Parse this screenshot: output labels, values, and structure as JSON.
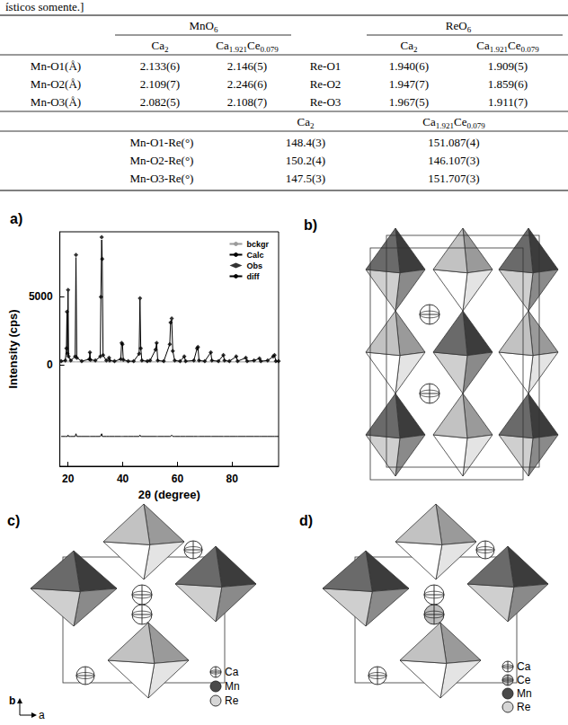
{
  "caption_fragment": "ísticos somente.]",
  "table": {
    "header": [
      "MnO6",
      "ReO6"
    ],
    "subheader": [
      "Ca2",
      "Ca1.921Ce0.079",
      "Ca2",
      "Ca1.921Ce0.079"
    ],
    "rows": [
      [
        "Mn-O1(Å)",
        "2.133(6)",
        "2.146(5)",
        "Re-O1",
        "1.940(6)",
        "1.909(5)"
      ],
      [
        "Mn-O2(Å)",
        "2.109(7)",
        "2.246(6)",
        "Re-O2",
        "1.947(7)",
        "1.859(6)"
      ],
      [
        "Mn-O3(Å)",
        "2.082(5)",
        "2.108(7)",
        "Re-O3",
        "1.967(5)",
        "1.911(7)"
      ]
    ],
    "angle_header": [
      "Ca2",
      "Ca1.921Ce0.079"
    ],
    "angle_rows": [
      [
        "Mn-O1-Re(°)",
        "148.4(3)",
        "151.087(4)"
      ],
      [
        "Mn-O2-Re(°)",
        "150.2(4)",
        "146.107(3)"
      ],
      [
        "Mn-O3-Re(°)",
        "147.5(3)",
        "151.707(3)"
      ]
    ]
  },
  "chart_data": {
    "type": "line",
    "title": "a)",
    "x_label": "2θ (degree)",
    "y_label": "Intensity (cps)",
    "xlim": [
      17,
      97
    ],
    "xticks": [
      20,
      40,
      60,
      80
    ],
    "ylim": [
      -7500,
      9800
    ],
    "yticks": [
      0,
      5000
    ],
    "grid": false,
    "legend": "upper right",
    "x": [
      17.5,
      19.0,
      19.4,
      19.6,
      19.8,
      20.0,
      20.2,
      21.0,
      22.6,
      22.9,
      23.2,
      25.0,
      27.8,
      28.0,
      28.2,
      30.0,
      31.8,
      32.0,
      32.3,
      32.5,
      32.8,
      34.0,
      35.0,
      35.2,
      37.0,
      39.3,
      39.6,
      39.9,
      40.2,
      42.0,
      44.0,
      46.0,
      46.3,
      46.6,
      47.0,
      49.0,
      50.0,
      52.0,
      52.4,
      52.8,
      55.0,
      57.2,
      57.5,
      57.9,
      58.3,
      59.0,
      61.0,
      62.5,
      63.0,
      66.0,
      67.2,
      67.5,
      67.9,
      70.0,
      72.2,
      72.6,
      75.0,
      76.8,
      77.2,
      79.0,
      81.5,
      82.0,
      85.0,
      85.5,
      88.0,
      90.0,
      90.5,
      93.0,
      95.0,
      95.5,
      96.0,
      97.0
    ],
    "series": [
      {
        "name": "bckgr",
        "type": "line",
        "color": "#9a9a9a",
        "line_style": "solid",
        "values": [
          200,
          200,
          200,
          200,
          200,
          200,
          200,
          200,
          200,
          200,
          200,
          200,
          200,
          200,
          200,
          200,
          200,
          200,
          200,
          200,
          200,
          200,
          200,
          200,
          200,
          200,
          200,
          200,
          200,
          200,
          200,
          200,
          200,
          200,
          200,
          200,
          200,
          200,
          200,
          200,
          200,
          200,
          200,
          200,
          200,
          200,
          200,
          200,
          200,
          200,
          200,
          200,
          200,
          200,
          200,
          200,
          200,
          200,
          200,
          200,
          200,
          200,
          200,
          200,
          200,
          200,
          200,
          200,
          200,
          200,
          200,
          200
        ]
      },
      {
        "name": "Calc",
        "type": "line",
        "color": "#000000",
        "line_style": "solid",
        "values": [
          250,
          300,
          1200,
          3900,
          800,
          5400,
          600,
          300,
          600,
          7900,
          500,
          250,
          400,
          900,
          350,
          300,
          600,
          5000,
          9200,
          7800,
          700,
          300,
          500,
          300,
          250,
          400,
          1600,
          1500,
          350,
          250,
          250,
          800,
          4800,
          1200,
          300,
          250,
          300,
          1100,
          1600,
          300,
          250,
          1500,
          3100,
          3300,
          1000,
          300,
          250,
          600,
          250,
          300,
          1200,
          1300,
          300,
          250,
          900,
          300,
          250,
          700,
          300,
          250,
          600,
          250,
          500,
          250,
          300,
          450,
          250,
          300,
          600,
          700,
          250,
          250
        ]
      },
      {
        "name": "Obs",
        "type": "scatter",
        "color": "#000000",
        "marker": "diamond",
        "values": [
          250,
          300,
          1200,
          3900,
          800,
          5500,
          600,
          300,
          600,
          8100,
          500,
          250,
          400,
          900,
          350,
          300,
          600,
          5000,
          9400,
          7800,
          700,
          300,
          500,
          300,
          250,
          400,
          1600,
          1500,
          350,
          250,
          250,
          800,
          4900,
          1200,
          300,
          250,
          300,
          1100,
          1600,
          300,
          250,
          1500,
          3100,
          3400,
          1000,
          300,
          250,
          600,
          250,
          300,
          1200,
          1300,
          300,
          250,
          900,
          300,
          250,
          700,
          300,
          250,
          600,
          250,
          500,
          250,
          300,
          450,
          250,
          300,
          600,
          700,
          250,
          250
        ]
      },
      {
        "name": "diff",
        "type": "line",
        "color": "#000000",
        "line_style": "solid",
        "values": [
          -5300,
          -5300,
          -5300,
          -5300,
          -5300,
          -5200,
          -5300,
          -5300,
          -5300,
          -5100,
          -5300,
          -5300,
          -5300,
          -5300,
          -5300,
          -5300,
          -5300,
          -5300,
          -5100,
          -5300,
          -5300,
          -5300,
          -5300,
          -5300,
          -5300,
          -5300,
          -5300,
          -5300,
          -5300,
          -5300,
          -5300,
          -5300,
          -5200,
          -5300,
          -5300,
          -5300,
          -5300,
          -5300,
          -5300,
          -5300,
          -5300,
          -5300,
          -5300,
          -5200,
          -5300,
          -5300,
          -5300,
          -5300,
          -5300,
          -5300,
          -5300,
          -5300,
          -5300,
          -5300,
          -5300,
          -5300,
          -5300,
          -5300,
          -5300,
          -5300,
          -5300,
          -5300,
          -5300,
          -5300,
          -5300,
          -5300,
          -5300,
          -5300,
          -5300,
          -5300,
          -5300,
          -5300
        ]
      }
    ]
  },
  "structure_panels": [
    {
      "label": "b)"
    },
    {
      "label": "c)",
      "atoms": [
        "Ca",
        "Mn",
        "Re"
      ],
      "axes": [
        "b",
        "a"
      ]
    },
    {
      "label": "d)",
      "atoms": [
        "Ca",
        "Ce",
        "Mn",
        "Re"
      ]
    }
  ]
}
